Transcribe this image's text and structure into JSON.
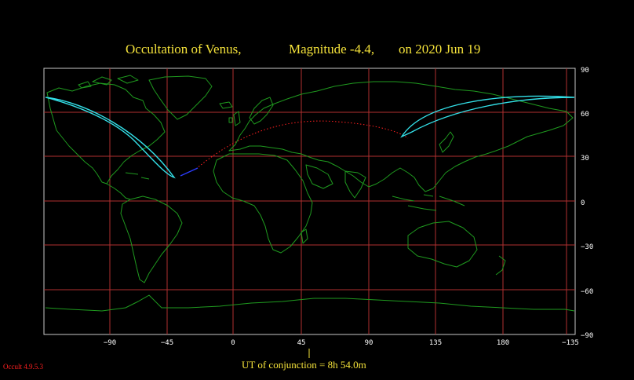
{
  "title": {
    "object_part": "Occultation  of  Venus,",
    "magnitude_part": "Magnitude -4.4,",
    "date_part": "on  2020 Jun 19"
  },
  "axes": {
    "longitude_ticks": [
      "−90",
      "−45",
      "0",
      "45",
      "90",
      "135",
      "180",
      "−135"
    ],
    "latitude_ticks": [
      "90",
      "60",
      "30",
      "0",
      "−30",
      "−60",
      "−90"
    ]
  },
  "conjunction_label": "UT of conjunction =  8h 54.0m",
  "version": "Occult 4.9.5.3",
  "colors": {
    "background": "#000000",
    "frame": "#c8c8c8",
    "gridlines": "#b03030",
    "coastlines": "#1f9a1f",
    "occultation_path": "#33e0e8",
    "daylight_track": "#ff2020",
    "twilight_track": "#2b3cff",
    "title_text": "#f4e23a",
    "version_text": "#ff2020"
  }
}
